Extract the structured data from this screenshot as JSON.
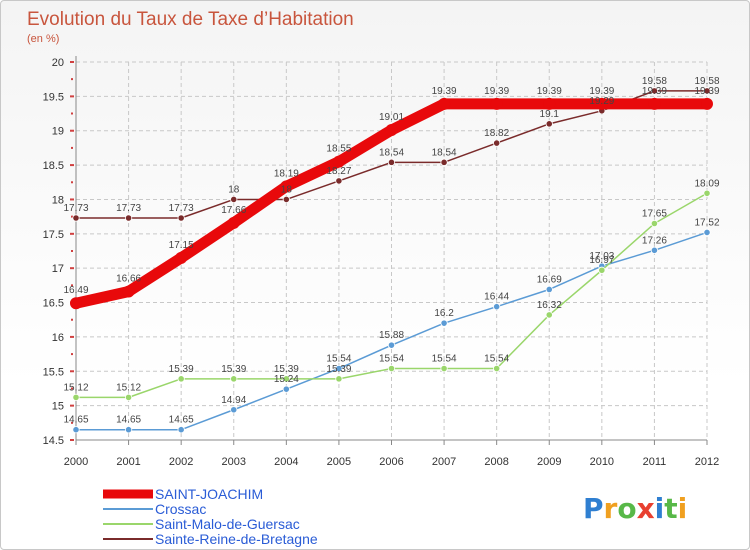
{
  "chart_data": {
    "type": "line",
    "title": "Evolution du Taux de Taxe d’Habitation",
    "subtitle": "(en %)",
    "categories": [
      "2000",
      "2001",
      "2002",
      "2003",
      "2004",
      "2005",
      "2006",
      "2007",
      "2008",
      "2009",
      "2010",
      "2011",
      "2012"
    ],
    "ylim": [
      14.5,
      20
    ],
    "yticks": [
      "14.5",
      "15",
      "15.5",
      "16",
      "16.5",
      "17",
      "17.5",
      "18",
      "18.5",
      "19",
      "19.5",
      "20"
    ],
    "grid": true,
    "legend_position": "bottom-left",
    "series": [
      {
        "name": "SAINT-JOACHIM",
        "color": "#e8090b",
        "values": [
          16.49,
          16.66,
          17.15,
          17.66,
          18.19,
          18.55,
          19.01,
          19.39,
          19.39,
          19.39,
          19.39,
          19.39,
          19.39
        ]
      },
      {
        "name": "Crossac",
        "color": "#5b9bd5",
        "values": [
          14.65,
          14.65,
          14.65,
          14.94,
          15.24,
          15.54,
          15.88,
          16.2,
          16.44,
          16.69,
          17.03,
          17.26,
          17.52
        ]
      },
      {
        "name": "Saint-Malo-de-Guersac",
        "color": "#9ad66b",
        "values": [
          15.12,
          15.12,
          15.39,
          15.39,
          15.39,
          15.39,
          15.54,
          15.54,
          15.54,
          16.32,
          16.97,
          17.65,
          18.09
        ]
      },
      {
        "name": "Sainte-Reine-de-Bretagne",
        "color": "#7a2b2b",
        "values": [
          17.73,
          17.73,
          17.73,
          18,
          18,
          18.27,
          18.54,
          18.54,
          18.82,
          19.1,
          19.29,
          19.58,
          19.58
        ]
      }
    ]
  },
  "logo": {
    "text": "Proxiti"
  }
}
